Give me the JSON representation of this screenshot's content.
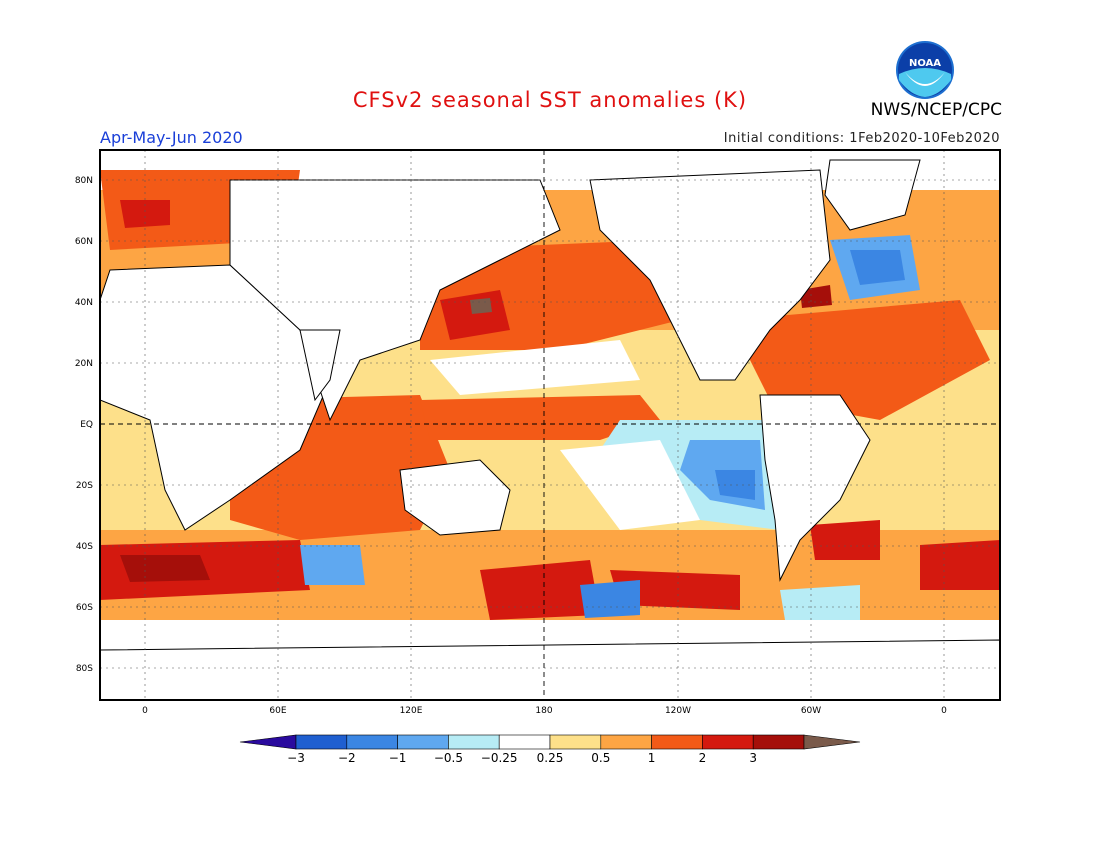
{
  "header": {
    "title": "CFSv2 seasonal SST anomalies (K)",
    "credit": "NWS/NCEP/CPC",
    "period": "Apr-May-Jun 2020",
    "initial_conditions": "Initial conditions: 1Feb2020-10Feb2020",
    "logo_text": "NOAA"
  },
  "map": {
    "lat_labels": [
      "80N",
      "60N",
      "40N",
      "20N",
      "EQ",
      "20S",
      "40S",
      "60S",
      "80S"
    ],
    "lon_labels": [
      "0",
      "60E",
      "120E",
      "180",
      "120W",
      "60W",
      "0"
    ]
  },
  "colorbar": {
    "tick_labels": [
      "-3",
      "-2",
      "-1",
      "-0.5",
      "-0.25",
      "0.25",
      "0.5",
      "1",
      "2",
      "3"
    ],
    "colors": [
      "#2a0a9e",
      "#1f5fd0",
      "#3b86e3",
      "#5fa8f0",
      "#b7ecf5",
      "#ffffff",
      "#fde08a",
      "#fda544",
      "#f35a17",
      "#d4190f",
      "#a50f0a",
      "#7a5a4a"
    ]
  }
}
